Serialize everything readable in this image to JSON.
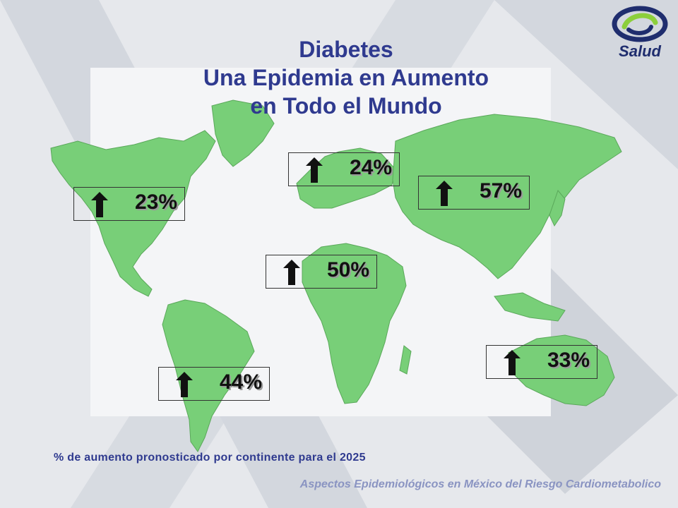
{
  "title": {
    "line1": "Diabetes",
    "line2": "Una Epidemia en Aumento",
    "line3": "en Todo el Mundo"
  },
  "logo": {
    "word": "Salud"
  },
  "continents": [
    {
      "name": "north-america",
      "value": "23%"
    },
    {
      "name": "europe",
      "value": "24%"
    },
    {
      "name": "asia",
      "value": "57%"
    },
    {
      "name": "africa",
      "value": "50%"
    },
    {
      "name": "south-america",
      "value": "44%"
    },
    {
      "name": "oceania",
      "value": "33%"
    }
  ],
  "caption": "% de aumento pronosticado por continente para el 2025",
  "footer": "Aspectos Epidemiológicos en México del Riesgo Cardiometabolico",
  "colors": {
    "background": "#e6e8ec",
    "map_panel": "#f4f5f7",
    "land": "#78cf78",
    "title": "#2f3a8f",
    "footer": "#8a94c2",
    "arrow": "#111111"
  },
  "icons": {
    "arrow": "up-arrow-icon"
  }
}
